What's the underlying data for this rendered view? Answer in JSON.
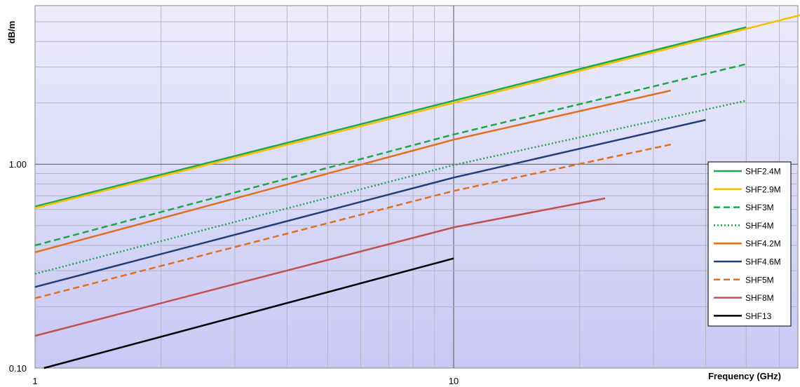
{
  "chart_data": {
    "type": "line",
    "title": "",
    "xlabel": "Frequency (GHz)",
    "ylabel": "dB/m",
    "x_scale": "log",
    "y_scale": "log",
    "xlim": [
      1,
      70
    ],
    "ylim": [
      0.1,
      6
    ],
    "x_tick_labels": [
      {
        "value": 1,
        "label": "1"
      },
      {
        "value": 10,
        "label": "10"
      }
    ],
    "y_tick_labels": [
      {
        "value": 0.1,
        "label": "0.10"
      },
      {
        "value": 1,
        "label": "1.00"
      }
    ],
    "grid": true,
    "legend_position": "right",
    "colors": {
      "plot_bg_top": "#ececfa",
      "plot_bg_bottom": "#c8c8f5",
      "gridline": "#b4b4c8",
      "major_gridline": "#555555"
    },
    "series": [
      {
        "name": "SHF2.4M",
        "color": "#1fa64a",
        "dash": "solid",
        "x": [
          1,
          10,
          50
        ],
        "y": [
          0.62,
          2.05,
          4.7
        ]
      },
      {
        "name": "SHF2.9M",
        "color": "#f5c000",
        "dash": "solid",
        "x": [
          1,
          10,
          70
        ],
        "y": [
          0.61,
          2.0,
          5.5
        ]
      },
      {
        "name": "SHF3M",
        "color": "#1fa64a",
        "dash": "dashed",
        "x": [
          1,
          10,
          50
        ],
        "y": [
          0.4,
          1.4,
          3.1
        ]
      },
      {
        "name": "SHF4M",
        "color": "#1fa64a",
        "dash": "dotted",
        "x": [
          1,
          10,
          50
        ],
        "y": [
          0.29,
          0.99,
          2.05
        ]
      },
      {
        "name": "SHF4.2M",
        "color": "#e07020",
        "dash": "solid",
        "x": [
          1,
          10,
          33
        ],
        "y": [
          0.37,
          1.32,
          2.3
        ]
      },
      {
        "name": "SHF4.6M",
        "color": "#1f3f7a",
        "dash": "solid",
        "x": [
          1,
          10,
          40
        ],
        "y": [
          0.25,
          0.86,
          1.65
        ]
      },
      {
        "name": "SHF5M",
        "color": "#e07020",
        "dash": "dashed",
        "x": [
          1,
          10,
          33
        ],
        "y": [
          0.22,
          0.74,
          1.25
        ]
      },
      {
        "name": "SHF8M",
        "color": "#c0504d",
        "dash": "solid",
        "x": [
          1,
          10,
          23
        ],
        "y": [
          0.144,
          0.49,
          0.68
        ]
      },
      {
        "name": "SHF13",
        "color": "#000000",
        "dash": "solid",
        "x": [
          1.05,
          10
        ],
        "y": [
          0.1,
          0.345
        ]
      }
    ]
  }
}
